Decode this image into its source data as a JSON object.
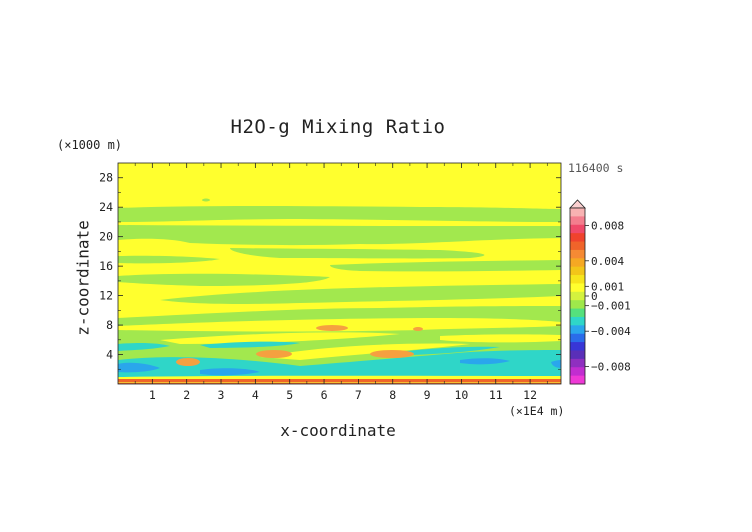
{
  "chart_data": {
    "type": "heatmap",
    "title": "H2O-g Mixing Ratio",
    "xlabel": "x-coordinate",
    "ylabel": "z-coordinate",
    "x_unit_label": "(×1E4 m)",
    "z_unit_label": "(×1000 m)",
    "timestamp": "116400 s",
    "xlim": [
      0,
      12.9
    ],
    "ylim": [
      0,
      30
    ],
    "x_ticks": [
      1,
      2,
      3,
      4,
      5,
      6,
      7,
      8,
      9,
      10,
      11,
      12
    ],
    "y_ticks": [
      4,
      8,
      12,
      16,
      20,
      24,
      28
    ],
    "colorbar": {
      "ticks": [
        0.008,
        0.004,
        0.001,
        0,
        -0.001,
        -0.004,
        -0.008
      ],
      "tick_labels": [
        "0.008",
        "0.004",
        "0.001",
        "0",
        "−0.001",
        "−0.004",
        "−0.008"
      ],
      "colors_top_to_bottom": [
        "#f8b2b2",
        "#f47e8e",
        "#f04a6a",
        "#f0432d",
        "#f0642a",
        "#f58a34",
        "#f5a823",
        "#f2c519",
        "#f7e51c",
        "#ffff2e",
        "#d4f23e",
        "#9fe84b",
        "#55e07c",
        "#2fd6c8",
        "#2aa6ec",
        "#2a6cea",
        "#3836d6",
        "#5a2fb8",
        "#8f2fc0",
        "#c12dd0",
        "#ee38d6"
      ]
    },
    "regions": [
      {
        "level": "near 0 (slightly positive)",
        "color": "#ffff2e",
        "area": "background, most of domain"
      },
      {
        "level": "-0.001 to 0",
        "color": "#a2e84e",
        "area": "horizontal bands at z 16-24 and z 3-10"
      },
      {
        "level": "-0.004 to -0.001",
        "color": "#2fd6c8",
        "area": "layer near z 1-4"
      },
      {
        "level": "-0.008 to -0.004",
        "color": "#2aa6ec",
        "area": "patches near z 1.5"
      },
      {
        "level": "0.001 to 0.004",
        "color": "#f5a040",
        "area": "small patches at x 2, 4.3, 6.2, 8.3 near z 3-7"
      },
      {
        "level": "above 0.004",
        "color": "#f0642a",
        "area": "thin layer at surface z 0"
      }
    ]
  }
}
